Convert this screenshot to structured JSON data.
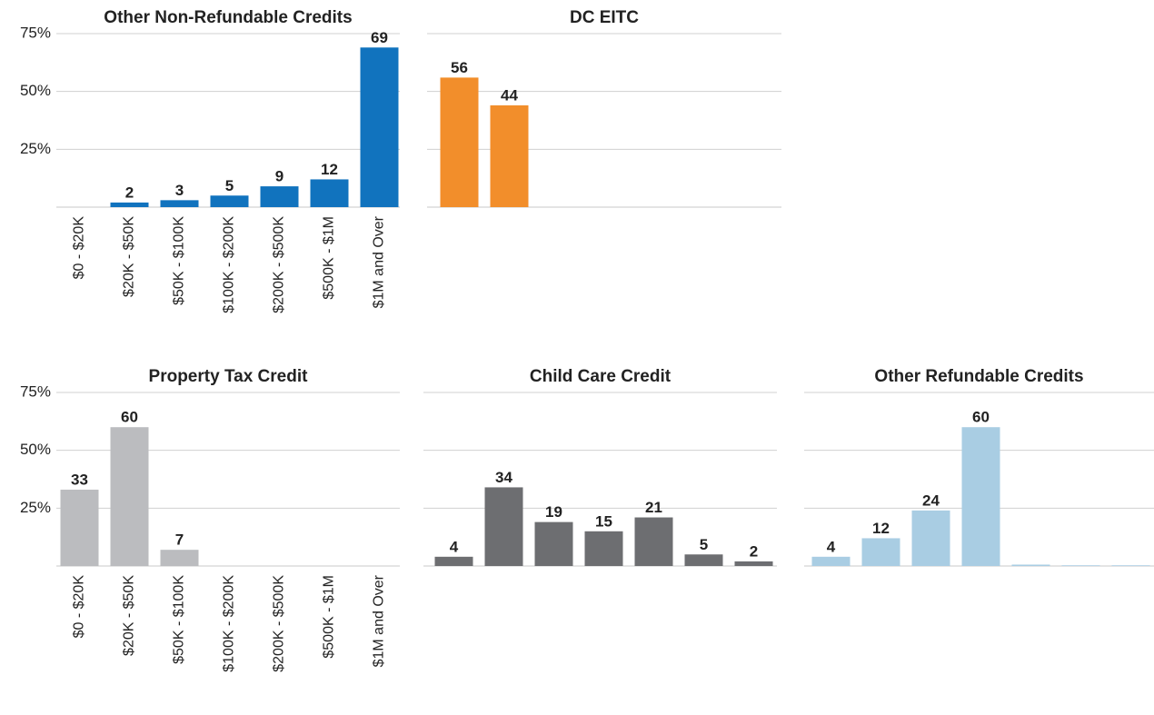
{
  "chart_data": [
    {
      "type": "bar",
      "title": "Other Non-Refundable Credits",
      "color": "#1173be",
      "categories": [
        "$0 - $20K",
        "$20K - $50K",
        "$50K - $100K",
        "$100K - $200K",
        "$200K - $500K",
        "$500K - $1M",
        "$1M and Over"
      ],
      "values": [
        null,
        2,
        3,
        5,
        9,
        12,
        69
      ],
      "ylim": [
        0,
        75
      ],
      "yticks": [
        {
          "value": 25,
          "label": "25%"
        },
        {
          "value": 50,
          "label": "50%"
        },
        {
          "value": 75,
          "label": "75%"
        }
      ],
      "grid": true
    },
    {
      "type": "bar",
      "title": "DC EITC",
      "color": "#f28e2b",
      "values": [
        56,
        44,
        null,
        null,
        null,
        null,
        null
      ],
      "ylim": [
        0,
        75
      ],
      "gridlines": [
        25,
        50,
        75
      ],
      "grid": true
    },
    {
      "type": "bar",
      "title": "Property Tax Credit",
      "color": "#bbbcbf",
      "categories": [
        "$0 - $20K",
        "$20K - $50K",
        "$50K - $100K",
        "$100K - $200K",
        "$200K - $500K",
        "$500K - $1M",
        "$1M and Over"
      ],
      "values": [
        33,
        60,
        7,
        null,
        null,
        null,
        null
      ],
      "ylim": [
        0,
        75
      ],
      "yticks": [
        {
          "value": 25,
          "label": "25%"
        },
        {
          "value": 50,
          "label": "50%"
        },
        {
          "value": 75,
          "label": "75%"
        }
      ],
      "grid": true
    },
    {
      "type": "bar",
      "title": "Child Care Credit",
      "color": "#6d6e71",
      "values": [
        4,
        34,
        19,
        15,
        21,
        5,
        2
      ],
      "ylim": [
        0,
        75
      ],
      "gridlines": [
        25,
        50,
        75
      ],
      "grid": true
    },
    {
      "type": "bar",
      "title": "Other Refundable Credits",
      "color": "#a9cde3",
      "values": [
        4,
        12,
        24,
        60,
        0.6,
        0.3,
        0.3
      ],
      "value_labels": [
        "4",
        "12",
        "24",
        "60",
        null,
        null,
        null
      ],
      "ylim": [
        0,
        75
      ],
      "gridlines": [
        25,
        50,
        75
      ],
      "grid": true
    }
  ]
}
